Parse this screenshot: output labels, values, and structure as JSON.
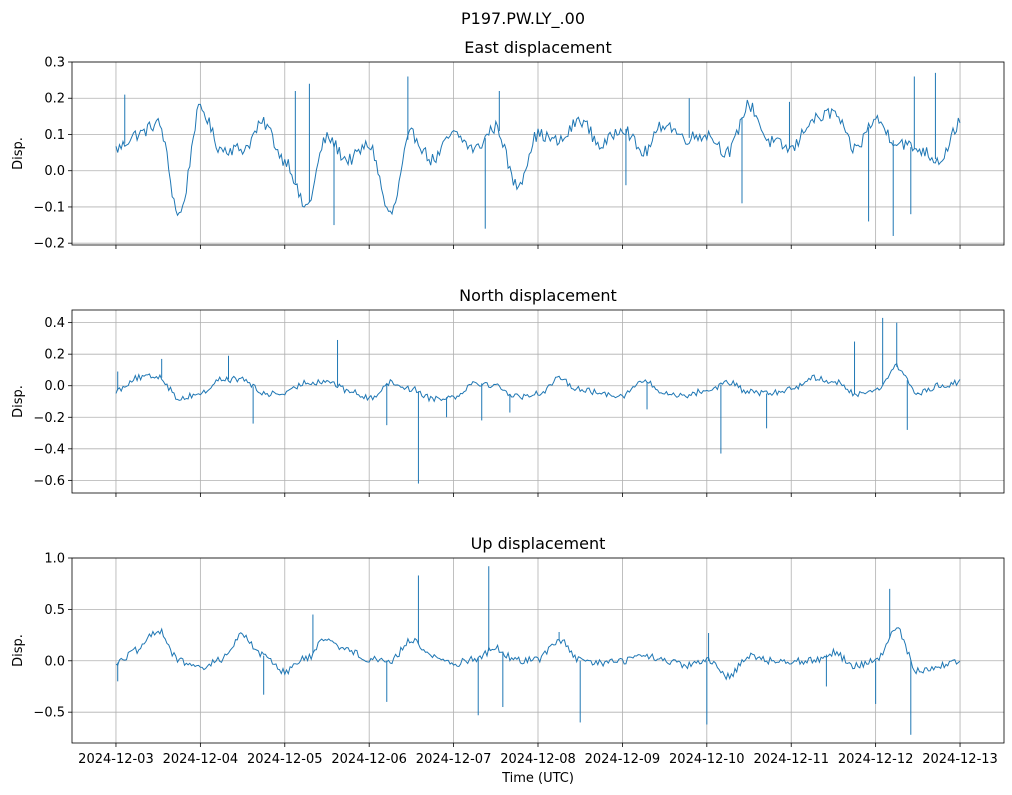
{
  "suptitle": "P197.PW.LY_.00",
  "x_axis": {
    "label": "Time (UTC)",
    "ticks": [
      "2024-12-03",
      "2024-12-04",
      "2024-12-05",
      "2024-12-06",
      "2024-12-07",
      "2024-12-08",
      "2024-12-09",
      "2024-12-10",
      "2024-12-11",
      "2024-12-12",
      "2024-12-13"
    ]
  },
  "colors": {
    "line": "#1f77b4",
    "grid": "#b0b0b0",
    "axes": "#000000"
  },
  "chart_data": [
    {
      "type": "line",
      "title": "East displacement",
      "ylabel": "Disp.",
      "xlim": [
        "2024-12-02T11:30",
        "2024-12-13T12:30"
      ],
      "ylim": [
        -0.205,
        0.3
      ],
      "yticks": [
        -0.2,
        -0.1,
        0.0,
        0.1,
        0.2,
        0.3
      ],
      "ytick_labels": [
        "−0.2",
        "−0.1",
        "0.0",
        "0.1",
        "0.2",
        "0.3"
      ],
      "grid": true,
      "series": [
        {
          "noise": 0.018,
          "x": [
            "2024-12-03T00:00",
            "2024-12-03T06:00",
            "2024-12-03T12:00",
            "2024-12-03T18:00",
            "2024-12-04T00:00",
            "2024-12-04T06:00",
            "2024-12-04T12:00",
            "2024-12-04T18:00",
            "2024-12-05T00:00",
            "2024-12-05T06:00",
            "2024-12-05T12:00",
            "2024-12-05T18:00",
            "2024-12-06T00:00",
            "2024-12-06T06:00",
            "2024-12-06T12:00",
            "2024-12-06T18:00",
            "2024-12-07T00:00",
            "2024-12-07T06:00",
            "2024-12-07T12:00",
            "2024-12-07T18:00",
            "2024-12-08T00:00",
            "2024-12-08T06:00",
            "2024-12-08T12:00",
            "2024-12-08T18:00",
            "2024-12-09T00:00",
            "2024-12-09T06:00",
            "2024-12-09T12:00",
            "2024-12-09T18:00",
            "2024-12-10T00:00",
            "2024-12-10T06:00",
            "2024-12-10T12:00",
            "2024-12-10T18:00",
            "2024-12-11T00:00",
            "2024-12-11T06:00",
            "2024-12-11T12:00",
            "2024-12-11T18:00",
            "2024-12-12T00:00",
            "2024-12-12T06:00",
            "2024-12-12T12:00",
            "2024-12-12T18:00",
            "2024-12-13T00:00"
          ],
          "values": [
            0.06,
            0.1,
            0.13,
            -0.12,
            0.17,
            0.06,
            0.06,
            0.13,
            0.03,
            -0.1,
            0.09,
            0.03,
            0.07,
            -0.12,
            0.1,
            0.03,
            0.1,
            0.06,
            0.12,
            -0.04,
            0.1,
            0.08,
            0.14,
            0.07,
            0.12,
            0.05,
            0.13,
            0.09,
            0.1,
            0.05,
            0.18,
            0.08,
            0.06,
            0.14,
            0.16,
            0.06,
            0.14,
            0.08,
            0.06,
            0.03,
            0.13
          ],
          "spikes": [
            [
              "2024-12-03T02:30",
              0.21
            ],
            [
              "2024-12-05T03:00",
              0.22
            ],
            [
              "2024-12-05T07:00",
              0.24
            ],
            [
              "2024-12-05T14:00",
              -0.15
            ],
            [
              "2024-12-06T11:00",
              0.26
            ],
            [
              "2024-12-07T09:00",
              -0.16
            ],
            [
              "2024-12-07T13:00",
              0.22
            ],
            [
              "2024-12-09T01:00",
              -0.04
            ],
            [
              "2024-12-09T19:00",
              0.2
            ],
            [
              "2024-12-10T10:00",
              -0.09
            ],
            [
              "2024-12-10T23:30",
              0.19
            ],
            [
              "2024-12-11T22:00",
              -0.14
            ],
            [
              "2024-12-12T05:00",
              -0.18
            ],
            [
              "2024-12-12T11:00",
              0.26
            ],
            [
              "2024-12-12T17:00",
              0.27
            ],
            [
              "2024-12-12T10:00",
              -0.12
            ]
          ]
        }
      ]
    },
    {
      "type": "line",
      "title": "North displacement",
      "ylabel": "Disp.",
      "xlim": [
        "2024-12-02T11:30",
        "2024-12-13T12:30"
      ],
      "ylim": [
        -0.68,
        0.48
      ],
      "yticks": [
        -0.6,
        -0.4,
        -0.2,
        0.0,
        0.2,
        0.4
      ],
      "ytick_labels": [
        "−0.6",
        "−0.4",
        "−0.2",
        "0.0",
        "0.2",
        "0.4"
      ],
      "grid": true,
      "series": [
        {
          "noise": 0.02,
          "x": [
            "2024-12-03T00:00",
            "2024-12-03T06:00",
            "2024-12-03T12:00",
            "2024-12-03T18:00",
            "2024-12-04T00:00",
            "2024-12-04T06:00",
            "2024-12-04T12:00",
            "2024-12-04T18:00",
            "2024-12-05T00:00",
            "2024-12-05T06:00",
            "2024-12-05T12:00",
            "2024-12-05T18:00",
            "2024-12-06T00:00",
            "2024-12-06T06:00",
            "2024-12-06T12:00",
            "2024-12-06T18:00",
            "2024-12-07T00:00",
            "2024-12-07T06:00",
            "2024-12-07T12:00",
            "2024-12-07T18:00",
            "2024-12-08T00:00",
            "2024-12-08T06:00",
            "2024-12-08T12:00",
            "2024-12-08T18:00",
            "2024-12-09T00:00",
            "2024-12-09T06:00",
            "2024-12-09T12:00",
            "2024-12-09T18:00",
            "2024-12-10T00:00",
            "2024-12-10T06:00",
            "2024-12-10T12:00",
            "2024-12-10T18:00",
            "2024-12-11T00:00",
            "2024-12-11T06:00",
            "2024-12-11T12:00",
            "2024-12-11T18:00",
            "2024-12-12T00:00",
            "2024-12-12T06:00",
            "2024-12-12T12:00",
            "2024-12-12T18:00",
            "2024-12-13T00:00"
          ],
          "values": [
            -0.03,
            0.05,
            0.06,
            -0.08,
            -0.05,
            0.04,
            0.04,
            -0.05,
            -0.05,
            0.02,
            0.03,
            -0.03,
            -0.08,
            0.02,
            -0.02,
            -0.08,
            -0.07,
            0.02,
            0.0,
            -0.07,
            -0.05,
            0.04,
            -0.02,
            -0.05,
            -0.06,
            0.03,
            -0.05,
            -0.06,
            -0.03,
            0.02,
            -0.04,
            -0.05,
            -0.02,
            0.05,
            0.03,
            -0.05,
            -0.03,
            0.12,
            -0.05,
            0.0,
            0.02
          ],
          "spikes": [
            [
              "2024-12-03T00:30",
              0.09
            ],
            [
              "2024-12-03T13:00",
              0.17
            ],
            [
              "2024-12-04T08:00",
              0.19
            ],
            [
              "2024-12-04T15:00",
              -0.24
            ],
            [
              "2024-12-05T15:00",
              0.29
            ],
            [
              "2024-12-06T05:00",
              -0.25
            ],
            [
              "2024-12-06T14:00",
              -0.62
            ],
            [
              "2024-12-06T22:00",
              -0.2
            ],
            [
              "2024-12-07T08:00",
              -0.22
            ],
            [
              "2024-12-07T16:00",
              -0.17
            ],
            [
              "2024-12-09T07:00",
              -0.15
            ],
            [
              "2024-12-10T04:00",
              -0.43
            ],
            [
              "2024-12-10T17:00",
              -0.27
            ],
            [
              "2024-12-11T18:00",
              0.28
            ],
            [
              "2024-12-12T02:00",
              0.43
            ],
            [
              "2024-12-12T06:00",
              0.4
            ],
            [
              "2024-12-12T09:00",
              -0.28
            ]
          ]
        }
      ]
    },
    {
      "type": "line",
      "title": "Up displacement",
      "ylabel": "Disp.",
      "xlim": [
        "2024-12-02T11:30",
        "2024-12-13T12:30"
      ],
      "ylim": [
        -0.8,
        1.0
      ],
      "yticks": [
        -0.5,
        0.0,
        0.5,
        1.0
      ],
      "ytick_labels": [
        "−0.5",
        "0.0",
        "0.5",
        "1.0"
      ],
      "grid": true,
      "series": [
        {
          "noise": 0.035,
          "x": [
            "2024-12-03T00:00",
            "2024-12-03T06:00",
            "2024-12-03T12:00",
            "2024-12-03T18:00",
            "2024-12-04T00:00",
            "2024-12-04T06:00",
            "2024-12-04T12:00",
            "2024-12-04T18:00",
            "2024-12-05T00:00",
            "2024-12-05T06:00",
            "2024-12-05T12:00",
            "2024-12-05T18:00",
            "2024-12-06T00:00",
            "2024-12-06T06:00",
            "2024-12-06T12:00",
            "2024-12-06T18:00",
            "2024-12-07T00:00",
            "2024-12-07T06:00",
            "2024-12-07T12:00",
            "2024-12-07T18:00",
            "2024-12-08T00:00",
            "2024-12-08T06:00",
            "2024-12-08T12:00",
            "2024-12-08T18:00",
            "2024-12-09T00:00",
            "2024-12-09T06:00",
            "2024-12-09T12:00",
            "2024-12-09T18:00",
            "2024-12-10T00:00",
            "2024-12-10T06:00",
            "2024-12-10T12:00",
            "2024-12-10T18:00",
            "2024-12-11T00:00",
            "2024-12-11T06:00",
            "2024-12-11T12:00",
            "2024-12-11T18:00",
            "2024-12-12T00:00",
            "2024-12-12T06:00",
            "2024-12-12T12:00",
            "2024-12-12T18:00",
            "2024-12-13T00:00"
          ],
          "values": [
            -0.02,
            0.1,
            0.3,
            0.0,
            -0.08,
            0.02,
            0.25,
            0.05,
            -0.1,
            0.02,
            0.22,
            0.1,
            0.02,
            0.0,
            0.2,
            0.05,
            -0.03,
            0.02,
            0.12,
            0.0,
            0.02,
            0.2,
            0.0,
            -0.02,
            0.0,
            0.05,
            0.0,
            -0.05,
            0.0,
            -0.15,
            0.05,
            0.0,
            0.0,
            0.0,
            0.08,
            -0.05,
            0.0,
            0.3,
            -0.1,
            -0.05,
            0.0
          ],
          "spikes": [
            [
              "2024-12-03T00:30",
              -0.2
            ],
            [
              "2024-12-04T18:00",
              -0.33
            ],
            [
              "2024-12-05T08:00",
              0.45
            ],
            [
              "2024-12-06T05:00",
              -0.4
            ],
            [
              "2024-12-06T14:00",
              0.83
            ],
            [
              "2024-12-07T07:00",
              -0.53
            ],
            [
              "2024-12-07T10:00",
              0.92
            ],
            [
              "2024-12-07T14:00",
              -0.45
            ],
            [
              "2024-12-08T06:00",
              0.28
            ],
            [
              "2024-12-08T12:00",
              -0.6
            ],
            [
              "2024-12-10T00:00",
              -0.62
            ],
            [
              "2024-12-10T00:30",
              0.27
            ],
            [
              "2024-12-12T00:00",
              -0.42
            ],
            [
              "2024-12-12T04:00",
              0.7
            ],
            [
              "2024-12-12T10:00",
              -0.72
            ],
            [
              "2024-12-11T10:00",
              -0.25
            ]
          ]
        }
      ]
    }
  ]
}
